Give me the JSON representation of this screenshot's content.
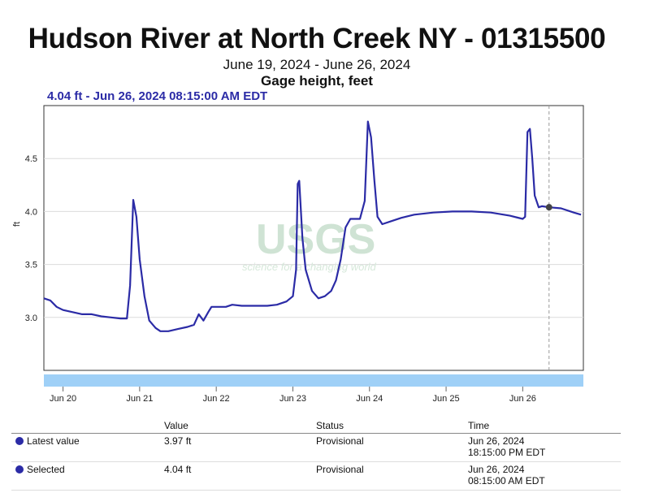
{
  "header": {
    "title": "Hudson River at North Creek NY - 01315500",
    "date_range": "June 19, 2024 - June 26, 2024",
    "parameter": "Gage height, feet",
    "selected_readout": "4.04 ft - Jun 26, 2024 08:15:00 AM EDT"
  },
  "chart_data": {
    "type": "line",
    "title": "Hudson River at North Creek NY - 01315500",
    "subtitle": "June 19, 2024 - June 26, 2024",
    "ylabel": "ft",
    "xlabel": "",
    "ylim": [
      2.5,
      5.0
    ],
    "y_ticks": [
      3.0,
      3.5,
      4.0,
      4.5
    ],
    "y_tick_labels": [
      "3.0",
      "3.5",
      "4.0",
      "4.5"
    ],
    "x_ticks": [
      "2024-06-20T00:00",
      "2024-06-21T00:00",
      "2024-06-22T00:00",
      "2024-06-23T00:00",
      "2024-06-24T00:00",
      "2024-06-25T00:00",
      "2024-06-26T00:00"
    ],
    "x_tick_labels": [
      "Jun 20",
      "Jun 21",
      "Jun 22",
      "Jun 23",
      "Jun 24",
      "Jun 25",
      "Jun 26"
    ],
    "xlim": [
      "2024-06-19T18:00",
      "2024-06-26T19:00"
    ],
    "grid": true,
    "line_color": "#2b2ba6",
    "navigator_color": "#9fd0f7",
    "selected_point": {
      "x": "2024-06-26T08:15",
      "y": 4.04
    },
    "series": [
      {
        "name": "Gage height",
        "points": [
          [
            "2024-06-19T18:00",
            3.18
          ],
          [
            "2024-06-19T20:00",
            3.16
          ],
          [
            "2024-06-19T22:00",
            3.1
          ],
          [
            "2024-06-20T00:00",
            3.07
          ],
          [
            "2024-06-20T03:00",
            3.05
          ],
          [
            "2024-06-20T06:00",
            3.03
          ],
          [
            "2024-06-20T09:00",
            3.03
          ],
          [
            "2024-06-20T12:00",
            3.01
          ],
          [
            "2024-06-20T15:00",
            3.0
          ],
          [
            "2024-06-20T18:00",
            2.99
          ],
          [
            "2024-06-20T20:00",
            2.99
          ],
          [
            "2024-06-20T21:00",
            3.3
          ],
          [
            "2024-06-20T22:00",
            4.11
          ],
          [
            "2024-06-20T23:00",
            3.95
          ],
          [
            "2024-06-21T00:00",
            3.55
          ],
          [
            "2024-06-21T01:30",
            3.2
          ],
          [
            "2024-06-21T03:00",
            2.97
          ],
          [
            "2024-06-21T05:00",
            2.9
          ],
          [
            "2024-06-21T06:30",
            2.87
          ],
          [
            "2024-06-21T09:00",
            2.87
          ],
          [
            "2024-06-21T12:00",
            2.89
          ],
          [
            "2024-06-21T15:00",
            2.91
          ],
          [
            "2024-06-21T17:00",
            2.93
          ],
          [
            "2024-06-21T18:30",
            3.03
          ],
          [
            "2024-06-21T20:00",
            2.97
          ],
          [
            "2024-06-21T21:30",
            3.05
          ],
          [
            "2024-06-21T22:30",
            3.1
          ],
          [
            "2024-06-22T03:00",
            3.1
          ],
          [
            "2024-06-22T05:00",
            3.12
          ],
          [
            "2024-06-22T08:00",
            3.11
          ],
          [
            "2024-06-22T12:00",
            3.11
          ],
          [
            "2024-06-22T16:00",
            3.11
          ],
          [
            "2024-06-22T19:00",
            3.12
          ],
          [
            "2024-06-22T22:00",
            3.15
          ],
          [
            "2024-06-23T00:00",
            3.2
          ],
          [
            "2024-06-23T01:00",
            3.45
          ],
          [
            "2024-06-23T01:30",
            4.26
          ],
          [
            "2024-06-23T02:00",
            4.29
          ],
          [
            "2024-06-23T03:00",
            3.75
          ],
          [
            "2024-06-23T04:00",
            3.45
          ],
          [
            "2024-06-23T06:00",
            3.25
          ],
          [
            "2024-06-23T08:00",
            3.18
          ],
          [
            "2024-06-23T10:00",
            3.2
          ],
          [
            "2024-06-23T12:00",
            3.25
          ],
          [
            "2024-06-23T13:30",
            3.35
          ],
          [
            "2024-06-23T15:00",
            3.55
          ],
          [
            "2024-06-23T16:30",
            3.85
          ],
          [
            "2024-06-23T18:00",
            3.93
          ],
          [
            "2024-06-23T21:00",
            3.93
          ],
          [
            "2024-06-23T22:30",
            4.1
          ],
          [
            "2024-06-23T23:30",
            4.85
          ],
          [
            "2024-06-24T00:30",
            4.7
          ],
          [
            "2024-06-24T01:30",
            4.3
          ],
          [
            "2024-06-24T02:30",
            3.95
          ],
          [
            "2024-06-24T04:00",
            3.88
          ],
          [
            "2024-06-24T07:00",
            3.91
          ],
          [
            "2024-06-24T10:00",
            3.94
          ],
          [
            "2024-06-24T14:00",
            3.97
          ],
          [
            "2024-06-24T20:00",
            3.99
          ],
          [
            "2024-06-25T02:00",
            4.0
          ],
          [
            "2024-06-25T08:00",
            4.0
          ],
          [
            "2024-06-25T14:00",
            3.99
          ],
          [
            "2024-06-25T20:00",
            3.96
          ],
          [
            "2024-06-26T00:00",
            3.93
          ],
          [
            "2024-06-26T00:45",
            3.95
          ],
          [
            "2024-06-26T01:30",
            4.75
          ],
          [
            "2024-06-26T02:15",
            4.78
          ],
          [
            "2024-06-26T03:00",
            4.5
          ],
          [
            "2024-06-26T03:45",
            4.15
          ],
          [
            "2024-06-26T05:00",
            4.04
          ],
          [
            "2024-06-26T06:00",
            4.05
          ],
          [
            "2024-06-26T08:15",
            4.04
          ],
          [
            "2024-06-26T12:00",
            4.03
          ],
          [
            "2024-06-26T16:00",
            3.99
          ],
          [
            "2024-06-26T18:15",
            3.97
          ]
        ]
      }
    ]
  },
  "watermark": {
    "logo_text": "USGS",
    "tagline": "science for a changing world"
  },
  "table": {
    "headers": [
      "",
      "Value",
      "Status",
      "Time"
    ],
    "rows": [
      {
        "label": "Latest value",
        "value": "3.97 ft",
        "status": "Provisional",
        "time_date": "Jun 26, 2024",
        "time_clock": "18:15:00 PM EDT"
      },
      {
        "label": "Selected",
        "value": "4.04 ft",
        "status": "Provisional",
        "time_date": "Jun 26, 2024",
        "time_clock": "08:15:00 AM EDT"
      }
    ]
  }
}
